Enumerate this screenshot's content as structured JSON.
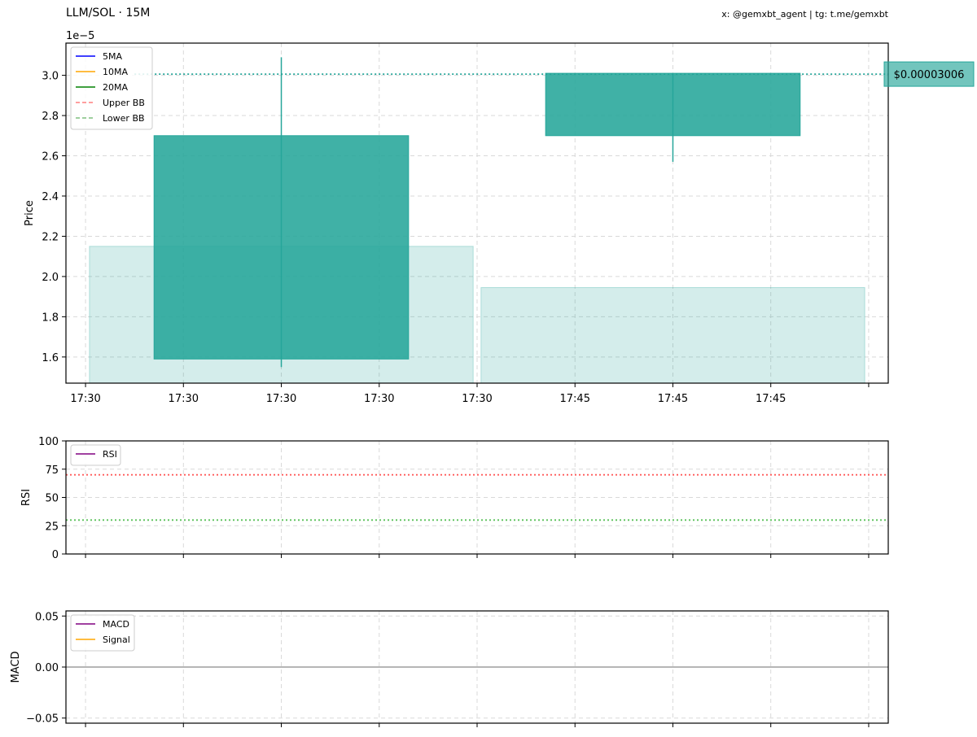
{
  "header": {
    "title": "LLM/SOL · 15M",
    "credit": "x: @gemxbt_agent | tg: t.me/gemxbt"
  },
  "colors": {
    "candle_up": "#26a69a",
    "volume": "#26a69a",
    "price_line": "#26a69a",
    "ma5": "#0000ff",
    "ma10": "#ffa500",
    "ma20": "#008000",
    "upper_bb": "#ff7f7f",
    "lower_bb": "#7fbf7f",
    "rsi": "#800080",
    "rsi_upper": "#ff0000",
    "rsi_lower": "#00a000",
    "macd": "#800080",
    "signal": "#ffa500",
    "grid": "#d9d9d9"
  },
  "chart_data": [
    {
      "id": "price",
      "type": "candlestick",
      "ylabel": "Price",
      "y_offset_label": "1e−5",
      "ylim": [
        1.47,
        3.16
      ],
      "yticks": [
        1.6,
        1.8,
        2.0,
        2.2,
        2.4,
        2.6,
        2.8,
        3.0
      ],
      "ytick_labels": [
        "1.6",
        "1.8",
        "2.0",
        "2.2",
        "2.4",
        "2.6",
        "2.8",
        "3.0"
      ],
      "xlim": [
        -0.2,
        8.2
      ],
      "xticks": [
        0,
        1,
        2,
        3,
        4,
        5,
        6,
        7,
        8
      ],
      "xtick_labels": [
        "17:30",
        "17:30",
        "17:30",
        "17:30",
        "17:30",
        "17:45",
        "17:45",
        "17:45",
        ""
      ],
      "grid": true,
      "legend": [
        "5MA",
        "10MA",
        "20MA",
        "Upper BB",
        "Lower BB"
      ],
      "legend_position": "top-left",
      "candles": [
        {
          "time": "17:30",
          "x": 2,
          "open": 1.59,
          "high": 3.09,
          "low": 1.55,
          "close": 2.7
        },
        {
          "time": "17:45",
          "x": 6,
          "open": 2.7,
          "high": 3.01,
          "low": 2.57,
          "close": 3.01
        }
      ],
      "candle_width": 2.6,
      "volume_bars": [
        {
          "x": 2,
          "top": 2.15
        },
        {
          "x": 6,
          "top": 1.945
        }
      ],
      "volume_width": 3.92,
      "last_price_level": 3.006,
      "last_price_label": "$0.00003006"
    },
    {
      "id": "rsi",
      "type": "line",
      "ylabel": "RSI",
      "ylim": [
        0,
        100
      ],
      "yticks": [
        0,
        25,
        50,
        75,
        100
      ],
      "ytick_labels": [
        "0",
        "25",
        "50",
        "75",
        "100"
      ],
      "xlim": [
        -0.2,
        8.2
      ],
      "xticks": [
        0,
        1,
        2,
        3,
        4,
        5,
        6,
        7,
        8
      ],
      "grid": true,
      "levels": [
        70,
        30
      ],
      "legend": [
        "RSI"
      ],
      "legend_position": "top-left"
    },
    {
      "id": "macd",
      "type": "line",
      "ylabel": "MACD",
      "ylim": [
        -0.055,
        0.055
      ],
      "yticks": [
        -0.05,
        0.0,
        0.05
      ],
      "ytick_labels": [
        "−0.05",
        "0.00",
        "0.05"
      ],
      "xlim": [
        -0.2,
        8.2
      ],
      "xticks": [
        0,
        1,
        2,
        3,
        4,
        5,
        6,
        7,
        8
      ],
      "grid": true,
      "zero_line": 0,
      "legend": [
        "MACD",
        "Signal"
      ],
      "legend_position": "top-left"
    }
  ]
}
